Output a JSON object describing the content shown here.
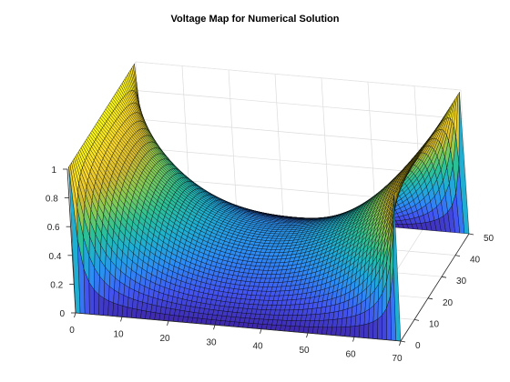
{
  "chart_data": {
    "type": "surface",
    "title": "Voltage Map for Numerical Solution",
    "xlabel": "",
    "ylabel": "",
    "zlabel": "",
    "xlim": [
      0,
      70
    ],
    "ylim": [
      0,
      50
    ],
    "zlim": [
      0,
      1
    ],
    "x_ticks": [
      0,
      10,
      20,
      30,
      40,
      50,
      60,
      70
    ],
    "y_ticks": [
      0,
      10,
      20,
      30,
      40,
      50
    ],
    "z_ticks": [
      0,
      0.2,
      0.4,
      0.6,
      0.8,
      1
    ],
    "z_tick_labels": [
      "0",
      "0.2",
      "0.4",
      "0.6",
      "0.8",
      "1"
    ],
    "grid": true,
    "colormap": "parula",
    "colormap_stops": [
      "#3e26a8",
      "#4354f0",
      "#2d8cf5",
      "#1fafd2",
      "#2cc097",
      "#81cc59",
      "#d6ba32",
      "#fbd92b",
      "#f9fb15"
    ],
    "edge_color": "#000000",
    "boundary_conditions": {
      "x_equals_0": 1,
      "x_equals_70": 1,
      "y_equals_0": 0,
      "y_equals_50": 0
    }
  }
}
